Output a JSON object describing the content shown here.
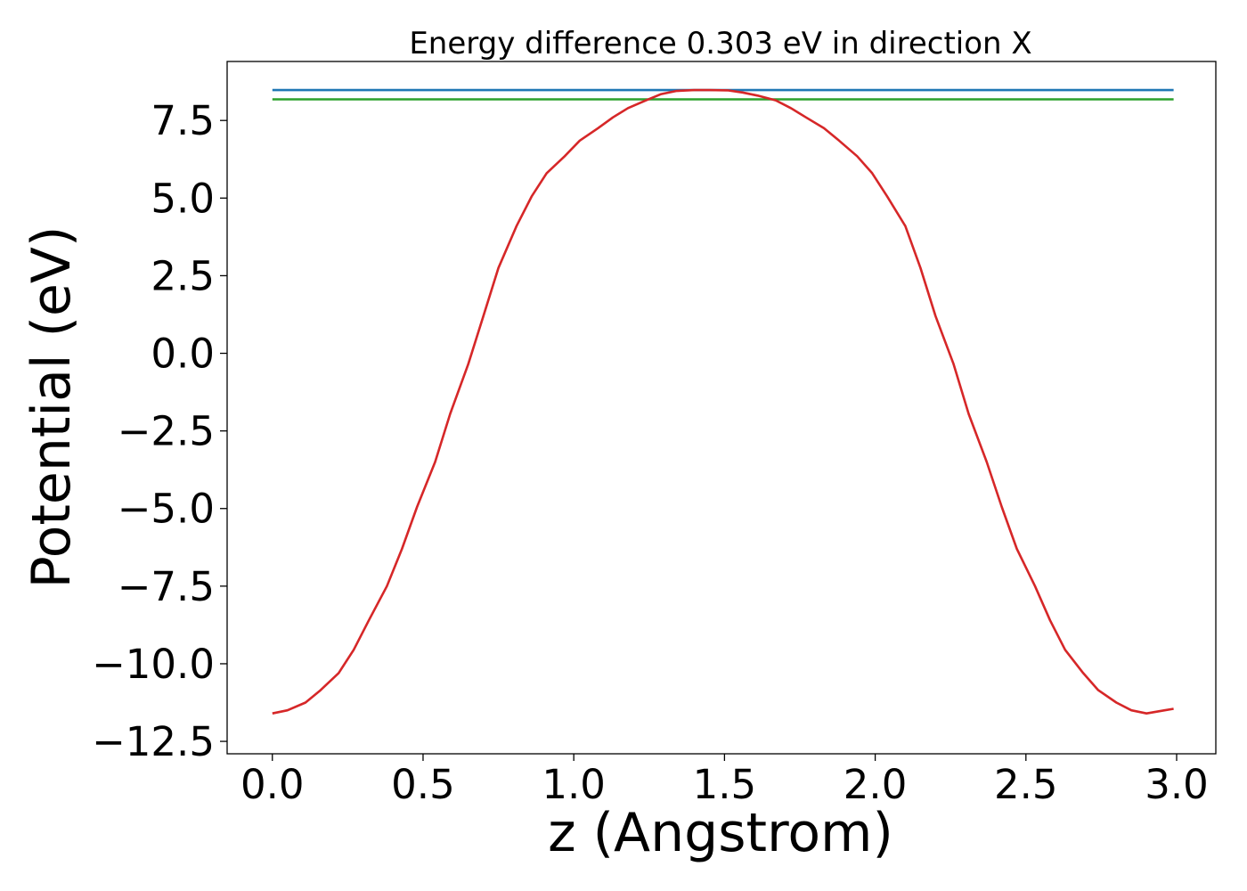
{
  "chart_data": {
    "type": "line",
    "title": "Energy difference 0.303 eV in direction X",
    "xlabel": "z (Angstrom)",
    "ylabel": "Potential (eV)",
    "xlim": [
      -0.15,
      3.13
    ],
    "ylim": [
      -12.9,
      9.4
    ],
    "xticks": [
      0.0,
      0.5,
      1.0,
      1.5,
      2.0,
      2.5,
      3.0
    ],
    "xtick_labels": [
      "0.0",
      "0.5",
      "1.0",
      "1.5",
      "2.0",
      "2.5",
      "3.0"
    ],
    "yticks": [
      -12.5,
      -10.0,
      -7.5,
      -5.0,
      -2.5,
      0.0,
      2.5,
      5.0,
      7.5
    ],
    "ytick_labels": [
      "−12.5",
      "−10.0",
      "−7.5",
      "−5.0",
      "−2.5",
      "0.0",
      "2.5",
      "5.0",
      "7.5"
    ],
    "grid": false,
    "series": [
      {
        "color": "#1f77b4",
        "x": [
          0.0,
          2.99
        ],
        "y": [
          8.48,
          8.48
        ]
      },
      {
        "color": "#2ca02c",
        "x": [
          0.0,
          2.99
        ],
        "y": [
          8.18,
          8.18
        ]
      },
      {
        "color": "#d62728",
        "x": [
          0.0,
          0.05,
          0.11,
          0.16,
          0.22,
          0.27,
          0.32,
          0.38,
          0.43,
          0.48,
          0.54,
          0.59,
          0.65,
          0.7,
          0.75,
          0.81,
          0.86,
          0.91,
          0.97,
          1.02,
          1.08,
          1.13,
          1.18,
          1.24,
          1.29,
          1.34,
          1.4,
          1.45,
          1.51,
          1.56,
          1.61,
          1.67,
          1.72,
          1.77,
          1.83,
          1.88,
          1.94,
          1.99,
          2.04,
          2.1,
          2.15,
          2.2,
          2.26,
          2.31,
          2.37,
          2.42,
          2.47,
          2.53,
          2.58,
          2.63,
          2.69,
          2.74,
          2.8,
          2.85,
          2.9,
          2.96,
          2.99
        ],
        "y": [
          -11.6,
          -11.5,
          -11.25,
          -10.85,
          -10.3,
          -9.55,
          -8.6,
          -7.5,
          -6.3,
          -4.95,
          -3.5,
          -1.95,
          -0.35,
          1.2,
          2.75,
          4.1,
          5.05,
          5.8,
          6.35,
          6.85,
          7.25,
          7.6,
          7.9,
          8.15,
          8.35,
          8.45,
          8.48,
          8.48,
          8.47,
          8.4,
          8.3,
          8.15,
          7.9,
          7.6,
          7.25,
          6.85,
          6.35,
          5.8,
          5.05,
          4.1,
          2.75,
          1.2,
          -0.35,
          -1.95,
          -3.5,
          -4.95,
          -6.3,
          -7.5,
          -8.6,
          -9.55,
          -10.3,
          -10.85,
          -11.25,
          -11.5,
          -11.6,
          -11.5,
          -11.45
        ]
      }
    ]
  }
}
